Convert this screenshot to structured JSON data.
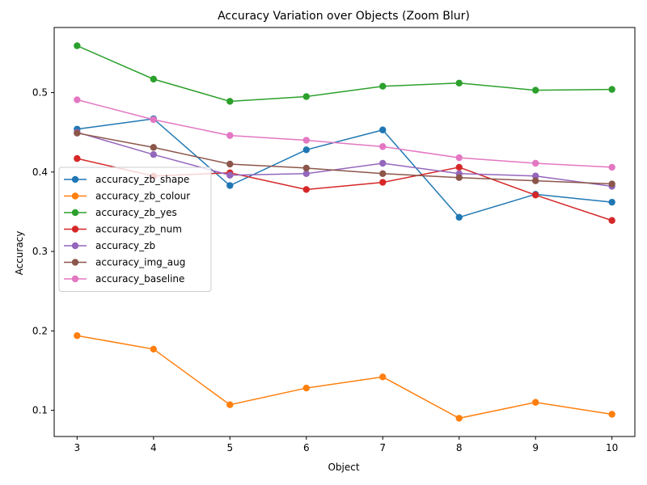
{
  "chart_data": {
    "type": "line",
    "title": "Accuracy Variation over Objects (Zoom Blur)",
    "xlabel": "Object",
    "ylabel": "Accuracy",
    "x": [
      3,
      4,
      5,
      6,
      7,
      8,
      9,
      10
    ],
    "xticks": [
      "3",
      "4",
      "5",
      "6",
      "7",
      "8",
      "9",
      "10"
    ],
    "yticks": [
      "0.1",
      "0.2",
      "0.3",
      "0.4",
      "0.5"
    ],
    "xlim": [
      2.7,
      10.3
    ],
    "ylim": [
      0.067,
      0.582
    ],
    "grid": false,
    "legend_position": "center-left",
    "series": [
      {
        "name": "accuracy_zb_shape",
        "color": "#1f77b4",
        "values": [
          0.454,
          0.467,
          0.383,
          0.428,
          0.453,
          0.343,
          0.372,
          0.362
        ]
      },
      {
        "name": "accuracy_zb_colour",
        "color": "#ff7f0e",
        "values": [
          0.194,
          0.177,
          0.107,
          0.128,
          0.142,
          0.09,
          0.11,
          0.095
        ]
      },
      {
        "name": "accuracy_zb_yes",
        "color": "#2ca02c",
        "values": [
          0.559,
          0.517,
          0.489,
          0.495,
          0.508,
          0.512,
          0.503,
          0.504
        ]
      },
      {
        "name": "accuracy_zb_num",
        "color": "#d62728",
        "values": [
          0.417,
          0.395,
          0.399,
          0.378,
          0.387,
          0.406,
          0.371,
          0.339
        ]
      },
      {
        "name": "accuracy_zb",
        "color": "#9467bd",
        "values": [
          0.45,
          0.422,
          0.396,
          0.398,
          0.411,
          0.398,
          0.395,
          0.382
        ]
      },
      {
        "name": "accuracy_img_aug",
        "color": "#8c564b",
        "values": [
          0.449,
          0.431,
          0.41,
          0.405,
          0.398,
          0.393,
          0.389,
          0.385
        ]
      },
      {
        "name": "accuracy_baseline",
        "color": "#e377c2",
        "values": [
          0.491,
          0.466,
          0.446,
          0.44,
          0.432,
          0.418,
          0.411,
          0.406
        ]
      }
    ]
  }
}
